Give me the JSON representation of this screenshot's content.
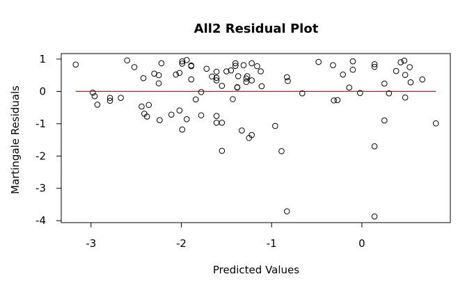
{
  "chart_data": {
    "type": "scatter",
    "title": "All2 Residual Plot",
    "xlabel": "Predicted Values",
    "ylabel": "Martingale Residuals",
    "xlim": [
      -3.33,
      0.98
    ],
    "ylim": [
      -4.06,
      1.17
    ],
    "xticks": [
      -3,
      -2,
      -1,
      0
    ],
    "yticks": [
      -4,
      -3,
      -2,
      -1,
      0,
      1
    ],
    "xtick_labels": [
      "-3",
      "-2",
      "-1",
      "0"
    ],
    "ytick_labels": [
      "-4",
      "-3",
      "-2",
      "-1",
      "0",
      "1"
    ],
    "grid": false,
    "reference_line": {
      "y": 0,
      "x_from": -3.17,
      "x_to": 0.82,
      "color": "#ff0000"
    },
    "marker_color": "#000000",
    "points": [
      [
        -3.17,
        0.83
      ],
      [
        -2.98,
        -0.04
      ],
      [
        -2.96,
        -0.15
      ],
      [
        -2.93,
        -0.41
      ],
      [
        -2.79,
        -0.2
      ],
      [
        -2.79,
        -0.29
      ],
      [
        -2.67,
        -0.2
      ],
      [
        -2.6,
        0.96
      ],
      [
        -2.52,
        0.75
      ],
      [
        -2.44,
        -0.47
      ],
      [
        -2.42,
        0.41
      ],
      [
        -2.41,
        -0.69
      ],
      [
        -2.38,
        -0.78
      ],
      [
        -2.36,
        -0.42
      ],
      [
        -2.3,
        0.55
      ],
      [
        -2.25,
        0.5
      ],
      [
        -2.25,
        0.25
      ],
      [
        -2.24,
        -0.89
      ],
      [
        -2.22,
        0.87
      ],
      [
        -2.11,
        -0.72
      ],
      [
        -2.06,
        0.52
      ],
      [
        -2.02,
        0.57
      ],
      [
        -2.02,
        -0.59
      ],
      [
        -1.99,
        0.86
      ],
      [
        -1.99,
        0.93
      ],
      [
        -1.99,
        -1.18
      ],
      [
        -1.94,
        0.97
      ],
      [
        -1.94,
        -0.86
      ],
      [
        -1.89,
        0.8
      ],
      [
        -1.89,
        0.78
      ],
      [
        -1.89,
        0.37
      ],
      [
        -1.84,
        -0.25
      ],
      [
        -1.78,
        -0.02
      ],
      [
        -1.78,
        -0.74
      ],
      [
        -1.72,
        0.7
      ],
      [
        -1.66,
        0.46
      ],
      [
        -1.61,
        0.42
      ],
      [
        -1.61,
        0.34
      ],
      [
        -1.61,
        0.61
      ],
      [
        -1.61,
        -0.76
      ],
      [
        -1.61,
        -0.97
      ],
      [
        -1.55,
        -0.97
      ],
      [
        -1.55,
        0.17
      ],
      [
        -1.55,
        -1.84
      ],
      [
        -1.5,
        0.62
      ],
      [
        -1.45,
        0.65
      ],
      [
        -1.43,
        -0.24
      ],
      [
        -1.4,
        0.79
      ],
      [
        -1.4,
        0.87
      ],
      [
        -1.38,
        0.12
      ],
      [
        -1.38,
        0.13
      ],
      [
        -1.37,
        0.47
      ],
      [
        -1.33,
        -1.21
      ],
      [
        -1.31,
        0.81
      ],
      [
        -1.28,
        0.29
      ],
      [
        -1.28,
        0.4
      ],
      [
        -1.27,
        0.47
      ],
      [
        -1.25,
        -1.44
      ],
      [
        -1.22,
        0.87
      ],
      [
        -1.22,
        0.34
      ],
      [
        -1.22,
        -1.35
      ],
      [
        -1.16,
        0.78
      ],
      [
        -1.12,
        0.62
      ],
      [
        -1.11,
        0.16
      ],
      [
        -0.96,
        -1.07
      ],
      [
        -0.89,
        -1.85
      ],
      [
        -0.83,
        0.44
      ],
      [
        -0.82,
        0.32
      ],
      [
        -0.83,
        -3.71
      ],
      [
        -0.66,
        -0.06
      ],
      [
        -0.48,
        0.91
      ],
      [
        -0.32,
        0.81
      ],
      [
        -0.31,
        -0.28
      ],
      [
        -0.27,
        -0.27
      ],
      [
        -0.21,
        0.52
      ],
      [
        -0.14,
        0.12
      ],
      [
        -0.1,
        0.93
      ],
      [
        -0.1,
        0.67
      ],
      [
        -0.02,
        -0.05
      ],
      [
        0.14,
        0.84
      ],
      [
        0.14,
        0.76
      ],
      [
        0.14,
        -1.7
      ],
      [
        0.14,
        -3.87
      ],
      [
        0.25,
        0.24
      ],
      [
        0.25,
        -0.9
      ],
      [
        0.3,
        -0.06
      ],
      [
        0.38,
        0.63
      ],
      [
        0.43,
        0.9
      ],
      [
        0.47,
        0.95
      ],
      [
        0.48,
        0.51
      ],
      [
        0.48,
        -0.19
      ],
      [
        0.53,
        0.75
      ],
      [
        0.54,
        0.28
      ],
      [
        0.67,
        0.37
      ],
      [
        0.82,
        -0.99
      ]
    ]
  }
}
